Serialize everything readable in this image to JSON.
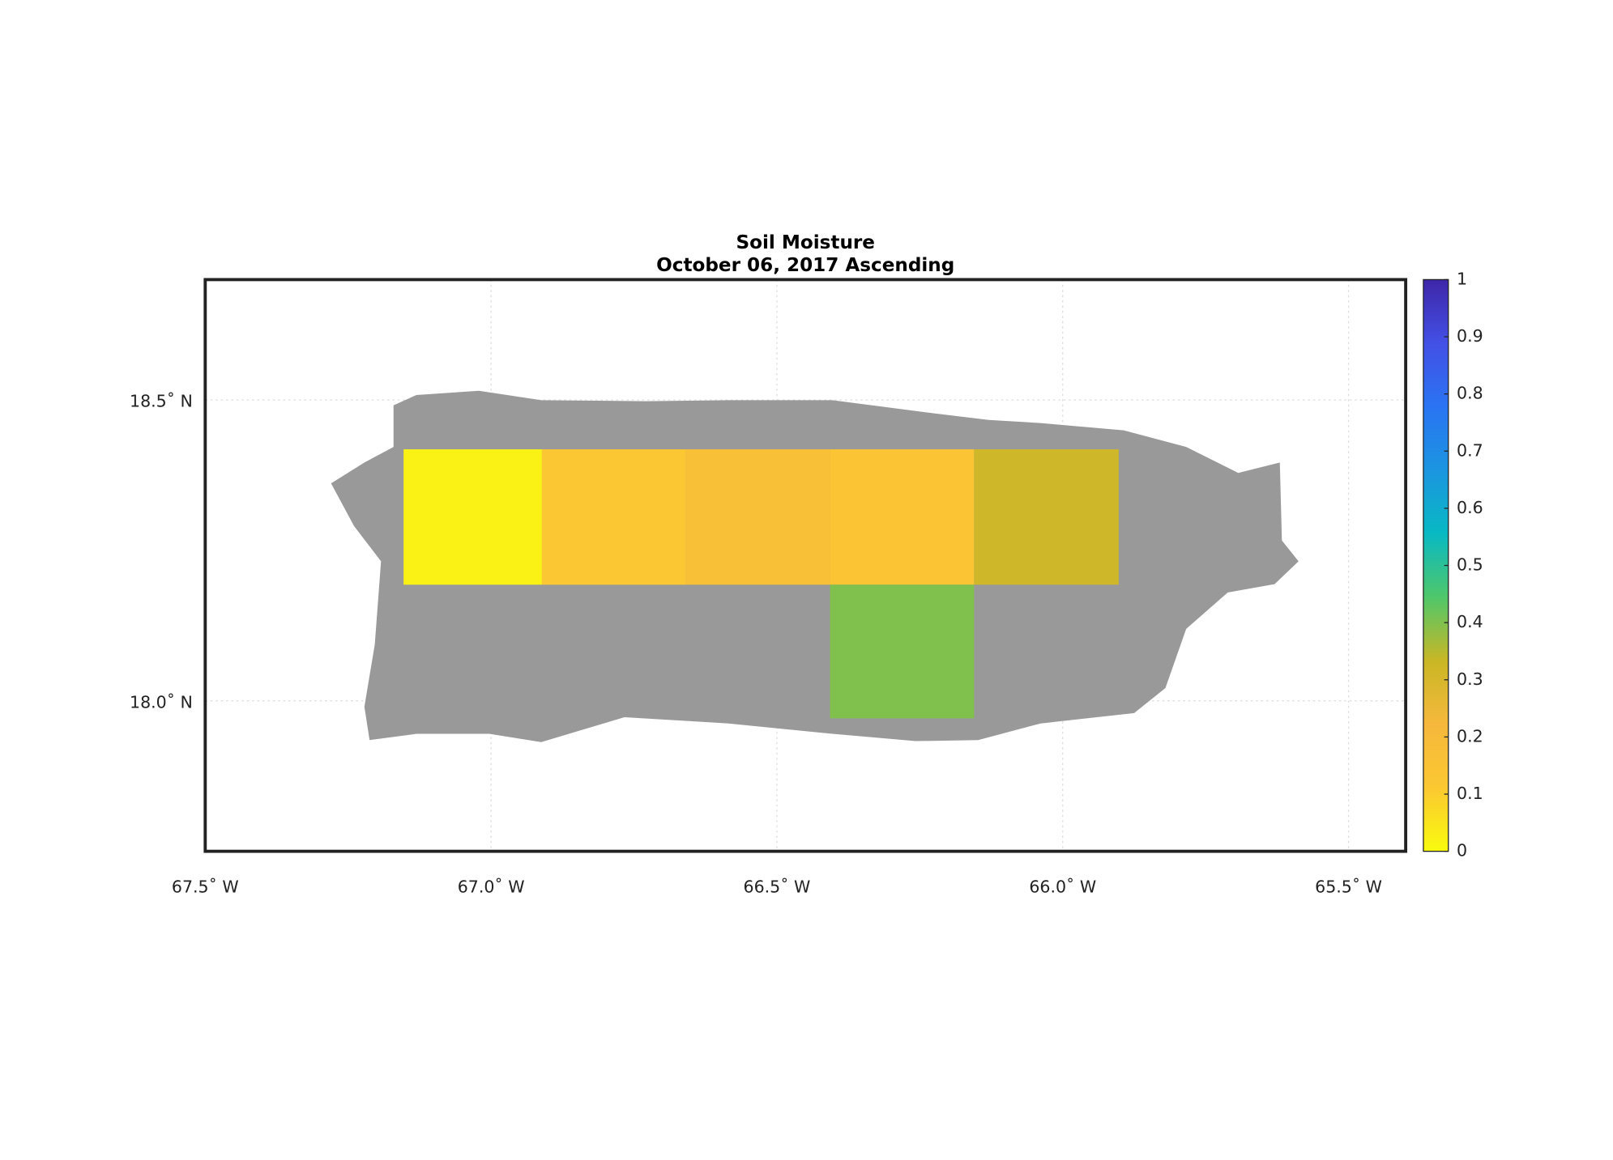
{
  "chart_data": {
    "type": "heatmap",
    "title": "Soil Moisture",
    "subtitle": "October 06, 2017 Ascending",
    "xlim": [
      -67.5,
      -65.4
    ],
    "ylim": [
      17.75,
      18.7
    ],
    "xticks": [
      {
        "value": -67.5,
        "label": "67.5˚ W"
      },
      {
        "value": -67.0,
        "label": "67.0˚ W"
      },
      {
        "value": -66.5,
        "label": "66.5˚ W"
      },
      {
        "value": -66.0,
        "label": "66.0˚ W"
      },
      {
        "value": -65.5,
        "label": "65.5˚ W"
      }
    ],
    "yticks": [
      {
        "value": 18.0,
        "label": "18.0˚ N"
      },
      {
        "value": 18.5,
        "label": "18.5˚ N"
      }
    ],
    "grid": true,
    "clim": [
      0,
      1
    ],
    "cticks": [
      0,
      0.1,
      0.2,
      0.3,
      0.4,
      0.5,
      0.6,
      0.7,
      0.8,
      0.9,
      1
    ],
    "colormap": [
      "#f9fb0e",
      "#fbc831",
      "#f6b83c",
      "#c9b725",
      "#4fc76a",
      "#08b9c3",
      "#1b95e0",
      "#2a74f3",
      "#4350e6",
      "#3e26a8"
    ],
    "cells": [
      {
        "lon": [
          -67.153,
          -66.911
        ],
        "lat": [
          18.193,
          18.418
        ],
        "value": 0.02
      },
      {
        "lon": [
          -66.911,
          -66.66
        ],
        "lat": [
          18.193,
          18.418
        ],
        "value": 0.12
      },
      {
        "lon": [
          -66.66,
          -66.407
        ],
        "lat": [
          18.193,
          18.418
        ],
        "value": 0.17
      },
      {
        "lon": [
          -66.407,
          -66.155
        ],
        "lat": [
          18.193,
          18.418
        ],
        "value": 0.14
      },
      {
        "lon": [
          -66.155,
          -65.902
        ],
        "lat": [
          18.193,
          18.418
        ],
        "value": 0.32
      },
      {
        "lon": [
          -66.407,
          -66.155
        ],
        "lat": [
          17.971,
          18.193
        ],
        "value": 0.4
      }
    ]
  }
}
